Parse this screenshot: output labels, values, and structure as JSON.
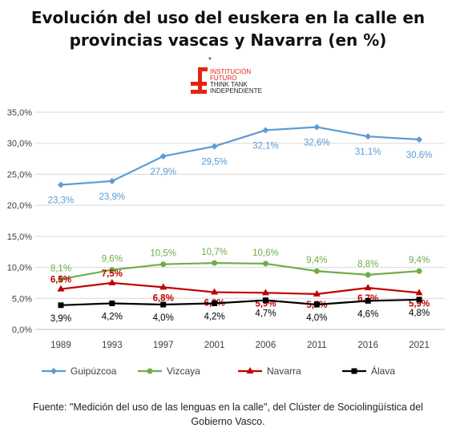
{
  "title_lines": [
    "Evolución del uso del euskera en la calle en",
    "provincias vascas y Navarra (en %)"
  ],
  "logo": {
    "star": "*",
    "lines": [
      "INSTITUCIÓN",
      "FUTURO",
      "THINK TANK",
      "INDEPENDIENTE"
    ],
    "color": "#e42313"
  },
  "source_lines": [
    "Fuente:  \"Medición del uso de las lenguas en la calle\", del Clúster de Sociolingüística del",
    "Gobierno Vasco."
  ],
  "chart_data": {
    "type": "line",
    "title": "Evolución del uso del euskera en la calle en provincias vascas y Navarra (en %)",
    "x": [
      "1989",
      "1993",
      "1997",
      "2001",
      "2006",
      "2011",
      "2016",
      "2021"
    ],
    "ylim": [
      0,
      35
    ],
    "yticks": [
      "0,0%",
      "5,0%",
      "10,0%",
      "15,0%",
      "20,0%",
      "25,0%",
      "30,0%",
      "35,0%"
    ],
    "grid": true,
    "legend_position": "bottom",
    "series": [
      {
        "name": "Guipúzcoa",
        "color": "#5b9bd5",
        "marker": "diamond",
        "values": [
          23.3,
          23.9,
          27.9,
          29.5,
          32.1,
          32.6,
          31.1,
          30.6
        ],
        "labels": [
          "23,3%",
          "23,9%",
          "27,9%",
          "29,5%",
          "32,1%",
          "32,6%",
          "31,1%",
          "30,6%"
        ]
      },
      {
        "name": "Vizcaya",
        "color": "#70ad47",
        "marker": "circle",
        "values": [
          8.1,
          9.6,
          10.5,
          10.7,
          10.6,
          9.4,
          8.8,
          9.4
        ],
        "labels": [
          "8,1%",
          "9,6%",
          "10,5%",
          "10,7%",
          "10,6%",
          "9,4%",
          "8,8%",
          "9,4%"
        ]
      },
      {
        "name": "Navarra",
        "color": "#c00000",
        "marker": "triangle",
        "values": [
          6.5,
          7.5,
          6.8,
          6.0,
          5.9,
          5.7,
          6.7,
          5.9
        ],
        "labels": [
          "6,5%",
          "7,5%",
          "6,8%",
          "6,0%",
          "5,9%",
          "5,7%",
          "6,7%",
          "5,9%"
        ]
      },
      {
        "name": "Álava",
        "color": "#000000",
        "marker": "square",
        "values": [
          3.9,
          4.2,
          4.0,
          4.2,
          4.7,
          4.0,
          4.6,
          4.8
        ],
        "labels": [
          "3,9%",
          "4,2%",
          "4,0%",
          "4,2%",
          "4,7%",
          "4,0%",
          "4,6%",
          "4,8%"
        ]
      }
    ]
  }
}
